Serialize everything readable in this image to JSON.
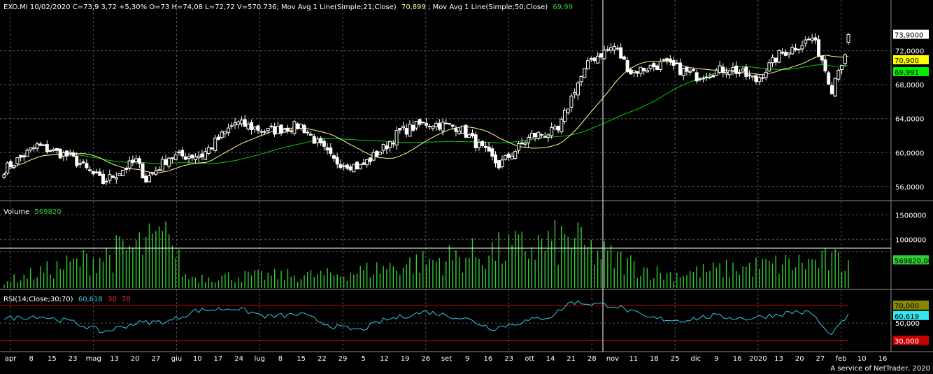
{
  "header": {
    "price_info": "EXO.MI 10/02/2020 C=73,9 3,72 +5,30% O=73 H=74,08 L=72,72 V=570.736; Mov Avg 1 Line(Simple;21;Close)",
    "ma21_value": "70,899",
    "ma50_label": "; Mov Avg 1 Line(Simple;50;Close)",
    "ma50_value": "69,99"
  },
  "volume_panel": {
    "label": "Volume",
    "value": "569820"
  },
  "rsi_panel": {
    "label": "RSI(14;Close;30;70)",
    "value": "60,618",
    "lower": "30",
    "upper": "70"
  },
  "footer": "A service of NetTrader, 2020",
  "colors": {
    "background": "#000000",
    "ma21": "#ffff99",
    "ma50": "#00cc00",
    "volume": "#33cc33",
    "rsi": "#33c8e6",
    "rsi_band": "#cc0000",
    "grid": "#666666"
  },
  "chart_data": {
    "type": "candlestick",
    "symbol": "EXO.MI",
    "price_axis": {
      "ylim": [
        54.5,
        76.5
      ],
      "ticks": [
        "56,0000",
        "60,0000",
        "64,0000",
        "68,0000",
        "72,0000"
      ]
    },
    "last_price_label": "73,9000",
    "ma21_label": "70,900",
    "ma50_label": "69,991",
    "volume_axis": {
      "ylim": [
        0,
        1750000
      ],
      "ticks": [
        "1000000",
        "1500000"
      ]
    },
    "volume_last_label": "569820,00",
    "rsi_axis": {
      "ylim": [
        20,
        85
      ],
      "ticks": [
        "50,000"
      ]
    },
    "rsi_labels": {
      "upper": "70,000",
      "value": "60,619",
      "lower": "30,000"
    },
    "x_labels": [
      "apr",
      "8",
      "15",
      "23",
      "mag",
      "13",
      "20",
      "27",
      "giu",
      "10",
      "17",
      "24",
      "lug",
      "8",
      "15",
      "22",
      "29",
      "5",
      "12",
      "19",
      "26",
      "set",
      "9",
      "16",
      "23",
      "ott",
      "14",
      "21",
      "28",
      "nov",
      "11",
      "18",
      "25",
      "dic",
      "9",
      "16",
      "2020",
      "13",
      "20",
      "27",
      "feb",
      "10",
      "16"
    ],
    "close_anchors": [
      [
        0,
        58.0
      ],
      [
        10,
        60.8
      ],
      [
        20,
        59.5
      ],
      [
        30,
        56.5
      ],
      [
        40,
        59.0
      ],
      [
        43,
        56.8
      ],
      [
        50,
        59.5
      ],
      [
        60,
        59.7
      ],
      [
        70,
        63.5
      ],
      [
        80,
        62.5
      ],
      [
        90,
        63.2
      ],
      [
        100,
        59.0
      ],
      [
        108,
        58.3
      ],
      [
        115,
        60.5
      ],
      [
        120,
        62.5
      ],
      [
        128,
        63.5
      ],
      [
        138,
        63.0
      ],
      [
        146,
        60.0
      ],
      [
        150,
        58.5
      ],
      [
        160,
        62.0
      ],
      [
        168,
        62.5
      ],
      [
        170,
        64.5
      ],
      [
        173,
        67.5
      ],
      [
        178,
        71.0
      ],
      [
        185,
        72.5
      ],
      [
        190,
        69.5
      ],
      [
        200,
        70.5
      ],
      [
        210,
        69.0
      ],
      [
        220,
        70.0
      ],
      [
        228,
        68.5
      ],
      [
        235,
        71.5
      ],
      [
        245,
        73.5
      ],
      [
        248,
        71.0
      ],
      [
        251,
        67.5
      ],
      [
        253,
        70.2
      ],
      [
        255,
        71.0
      ],
      [
        256,
        73.9
      ]
    ],
    "volume_anchors": [
      [
        0,
        150000
      ],
      [
        50,
        1100000
      ],
      [
        55,
        250000
      ],
      [
        100,
        300000
      ],
      [
        171,
        1050000
      ],
      [
        174,
        1350000
      ],
      [
        175,
        900000
      ],
      [
        200,
        300000
      ],
      [
        240,
        560000
      ],
      [
        250,
        600000
      ],
      [
        256,
        569820
      ]
    ],
    "rsi_anchors": [
      [
        0,
        55
      ],
      [
        10,
        58
      ],
      [
        20,
        52
      ],
      [
        30,
        40
      ],
      [
        40,
        50
      ],
      [
        50,
        52
      ],
      [
        58,
        64
      ],
      [
        70,
        67
      ],
      [
        80,
        57
      ],
      [
        90,
        60
      ],
      [
        100,
        46
      ],
      [
        108,
        42
      ],
      [
        115,
        53
      ],
      [
        128,
        63
      ],
      [
        140,
        55
      ],
      [
        148,
        44
      ],
      [
        158,
        52
      ],
      [
        166,
        58
      ],
      [
        172,
        74
      ],
      [
        178,
        72
      ],
      [
        185,
        70
      ],
      [
        195,
        56
      ],
      [
        205,
        53
      ],
      [
        215,
        58
      ],
      [
        225,
        55
      ],
      [
        235,
        60
      ],
      [
        240,
        63
      ],
      [
        245,
        61
      ],
      [
        250,
        37
      ],
      [
        253,
        45
      ],
      [
        256,
        60.6
      ]
    ]
  }
}
